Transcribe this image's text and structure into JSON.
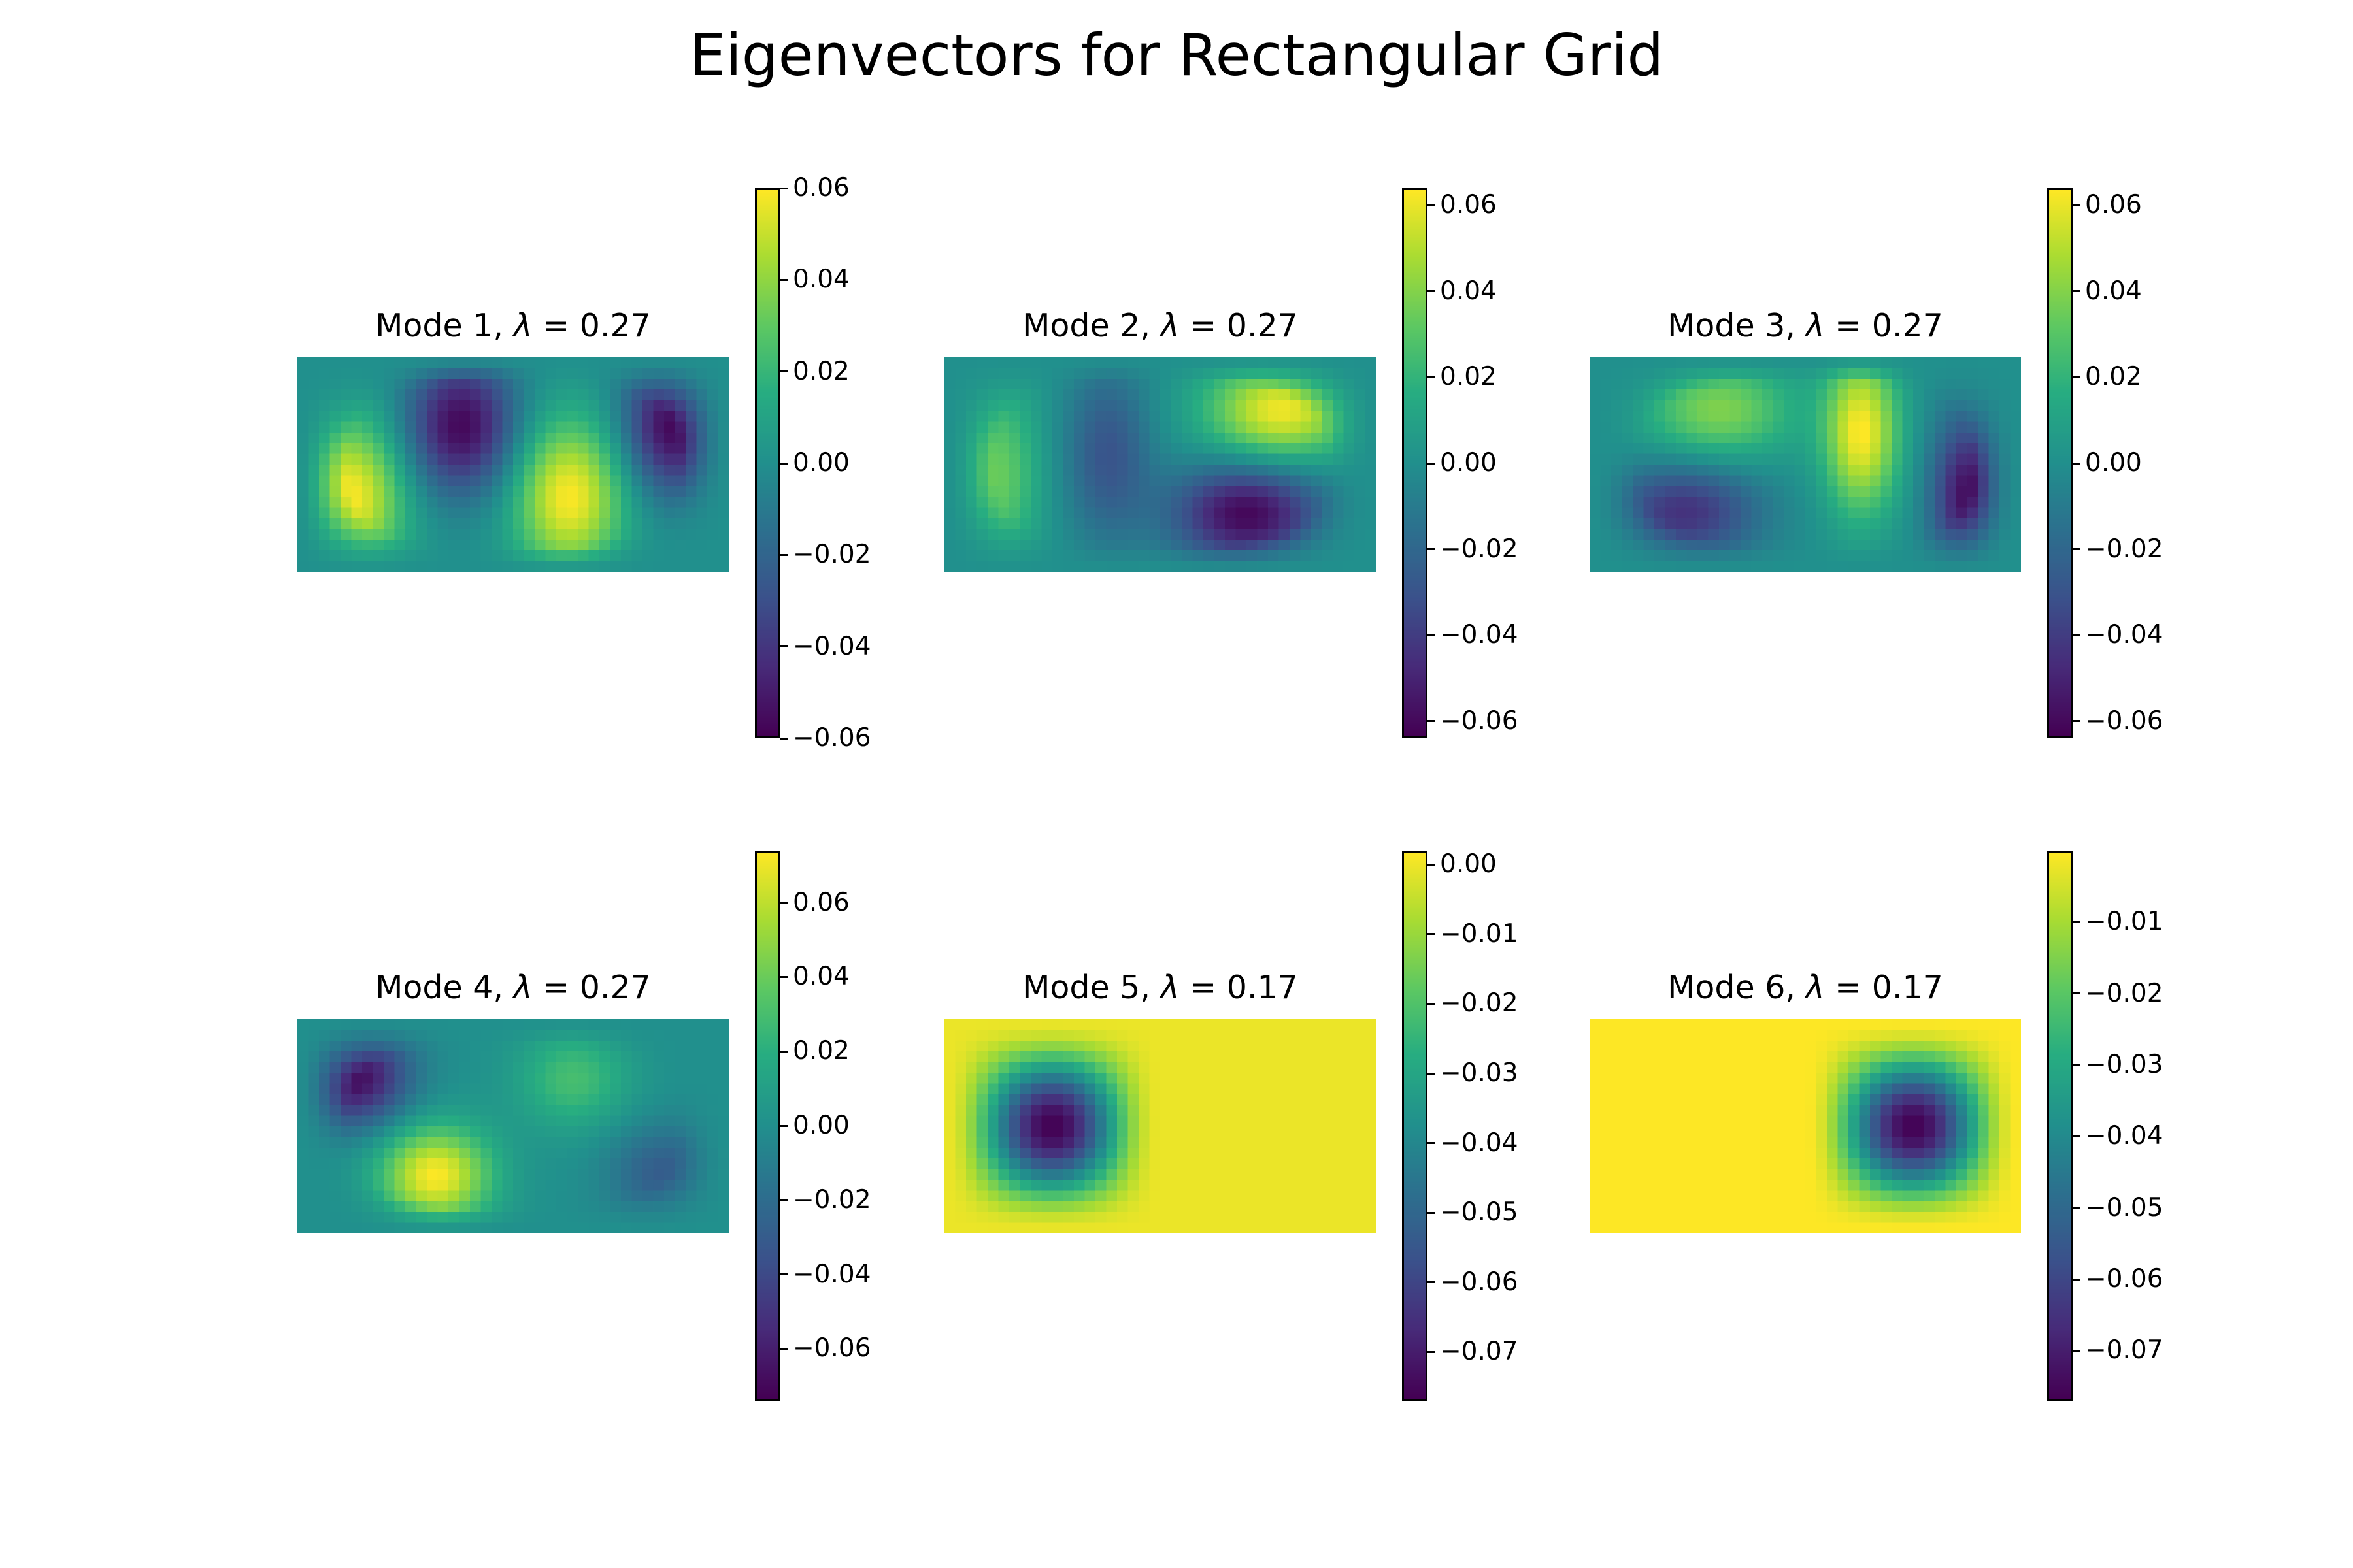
{
  "chart_data": {
    "type": "heatmap",
    "title": "Eigenvectors for Rectangular Grid",
    "colormap": "viridis",
    "grid": false,
    "panels": [
      {
        "title_prefix": "Mode 1, ",
        "lambda_symbol": "λ",
        "title_suffix": " = 0.27",
        "vmin": -0.06,
        "vmax": 0.06,
        "ticks": [
          0.06,
          0.04,
          0.02,
          0.0,
          -0.02,
          -0.04,
          -0.06
        ],
        "tick_labels": [
          "0.06",
          "0.04",
          "0.02",
          "0.00",
          "−0.02",
          "−0.04",
          "−0.06"
        ],
        "blobs": [
          [
            0.12,
            0.65,
            0.09,
            0.25,
            0.06
          ],
          [
            0.38,
            0.32,
            0.09,
            0.22,
            -0.058
          ],
          [
            0.63,
            0.65,
            0.09,
            0.25,
            0.06
          ],
          [
            0.87,
            0.32,
            0.08,
            0.22,
            -0.058
          ]
        ]
      },
      {
        "title_prefix": "Mode 2, ",
        "lambda_symbol": "λ",
        "title_suffix": " = 0.27",
        "vmin": -0.064,
        "vmax": 0.064,
        "ticks": [
          0.06,
          0.04,
          0.02,
          0.0,
          -0.02,
          -0.04,
          -0.06
        ],
        "tick_labels": [
          "0.06",
          "0.04",
          "0.02",
          "0.00",
          "−0.02",
          "−0.04",
          "−0.06"
        ],
        "blobs": [
          [
            0.12,
            0.55,
            0.07,
            0.3,
            0.035
          ],
          [
            0.38,
            0.45,
            0.07,
            0.28,
            -0.03
          ],
          [
            0.78,
            0.25,
            0.12,
            0.16,
            0.062
          ],
          [
            0.7,
            0.73,
            0.12,
            0.16,
            -0.062
          ]
        ]
      },
      {
        "title_prefix": "Mode 3, ",
        "lambda_symbol": "λ",
        "title_suffix": " = 0.27",
        "vmin": -0.064,
        "vmax": 0.064,
        "ticks": [
          0.06,
          0.04,
          0.02,
          0.0,
          -0.02,
          -0.04,
          -0.06
        ],
        "tick_labels": [
          "0.06",
          "0.04",
          "0.02",
          "0.00",
          "−0.02",
          "−0.04",
          "−0.06"
        ],
        "blobs": [
          [
            0.3,
            0.25,
            0.12,
            0.16,
            0.04
          ],
          [
            0.22,
            0.72,
            0.12,
            0.16,
            -0.045
          ],
          [
            0.63,
            0.35,
            0.06,
            0.26,
            0.064
          ],
          [
            0.88,
            0.65,
            0.06,
            0.26,
            -0.06
          ]
        ]
      },
      {
        "title_prefix": "Mode 4, ",
        "lambda_symbol": "λ",
        "title_suffix": " = 0.27",
        "vmin": -0.074,
        "vmax": 0.074,
        "ticks": [
          0.06,
          0.04,
          0.02,
          0.0,
          -0.02,
          -0.04,
          -0.06
        ],
        "tick_labels": [
          "0.06",
          "0.04",
          "0.02",
          "0.00",
          "−0.02",
          "−0.04",
          "−0.06"
        ],
        "blobs": [
          [
            0.13,
            0.27,
            0.09,
            0.16,
            -0.07
          ],
          [
            0.32,
            0.73,
            0.09,
            0.16,
            0.074
          ],
          [
            0.64,
            0.28,
            0.09,
            0.16,
            0.03
          ],
          [
            0.85,
            0.72,
            0.09,
            0.16,
            -0.03
          ]
        ]
      },
      {
        "title_prefix": "Mode 5, ",
        "lambda_symbol": "λ",
        "title_suffix": " = 0.17",
        "vmin": -0.077,
        "vmax": 0.002,
        "ticks": [
          0.0,
          -0.01,
          -0.02,
          -0.03,
          -0.04,
          -0.05,
          -0.06,
          -0.07
        ],
        "tick_labels": [
          "0.00",
          "−0.01",
          "−0.02",
          "−0.03",
          "−0.04",
          "−0.05",
          "−0.06",
          "−0.07"
        ],
        "well": {
          "left": 0.0,
          "right": 0.5,
          "depth": -0.077
        }
      },
      {
        "title_prefix": "Mode 6, ",
        "lambda_symbol": "λ",
        "title_suffix": " = 0.17",
        "vmin": -0.077,
        "vmax": 0.0,
        "ticks": [
          -0.01,
          -0.02,
          -0.03,
          -0.04,
          -0.05,
          -0.06,
          -0.07
        ],
        "tick_labels": [
          "−0.01",
          "−0.02",
          "−0.03",
          "−0.04",
          "−0.05",
          "−0.06",
          "−0.07"
        ],
        "well": {
          "left": 0.5,
          "right": 1.0,
          "depth": -0.077
        }
      }
    ]
  }
}
